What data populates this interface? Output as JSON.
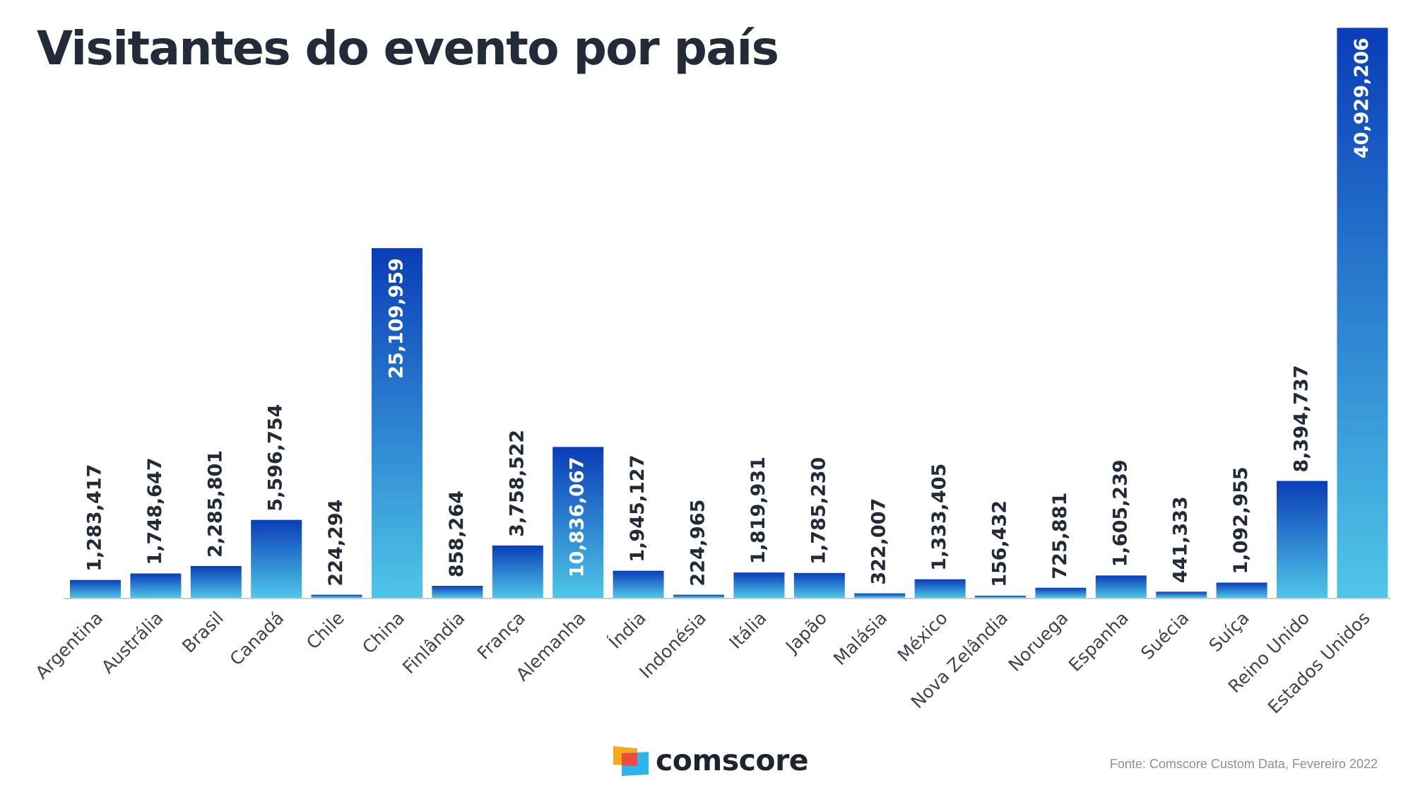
{
  "chart_data": {
    "type": "bar",
    "title": "Visitantes do evento por país",
    "categories": [
      "Argentina",
      "Austrália",
      "Brasil",
      "Canadá",
      "Chile",
      "China",
      "Finlândia",
      "França",
      "Alemanha",
      "Índia",
      "Indonésia",
      "Itália",
      "Japão",
      "Malásia",
      "México",
      "Nova Zelândia",
      "Noruega",
      "Espanha",
      "Suécia",
      "Suíça",
      "Reino Unido",
      "Estados Unidos"
    ],
    "values": [
      1283417,
      1748647,
      2285801,
      5596754,
      224294,
      25109959,
      858264,
      3758522,
      10836067,
      1945127,
      224965,
      1819931,
      1785230,
      322007,
      1333405,
      156432,
      725881,
      1605239,
      441333,
      1092955,
      8394737,
      40929206
    ],
    "value_labels": [
      "1,283,417",
      "1,748,647",
      "2,285,801",
      "5,596,754",
      "224,294",
      "25,109,959",
      "858,264",
      "3,758,522",
      "10,836,067",
      "1,945,127",
      "224,965",
      "1,819,931",
      "1,785,230",
      "322,007",
      "1,333,405",
      "156,432",
      "725,881",
      "1,605,239",
      "441,333",
      "1,092,955",
      "8,394,737",
      "40,929,206"
    ],
    "labels_inside": [
      false,
      false,
      false,
      false,
      false,
      true,
      false,
      false,
      true,
      false,
      false,
      false,
      false,
      false,
      false,
      false,
      false,
      false,
      false,
      false,
      false,
      true
    ],
    "ylim": [
      0,
      41000000
    ],
    "grid": false,
    "legend": "none",
    "xlabel": "",
    "ylabel": ""
  },
  "colors": {
    "bar_top": "#0a3db8",
    "bar_bottom": "#4fc6e8",
    "label_dark": "#232a38",
    "label_light": "#ffffff",
    "axis": "#c9ced6",
    "tick_text": "#3d4350",
    "title": "#232a38"
  },
  "logo": {
    "text": "comscore",
    "colors": [
      "#f7a81b",
      "#ef4a3f",
      "#2bb5e8"
    ]
  },
  "source": "Fonte: Comscore Custom Data, Fevereiro 2022"
}
